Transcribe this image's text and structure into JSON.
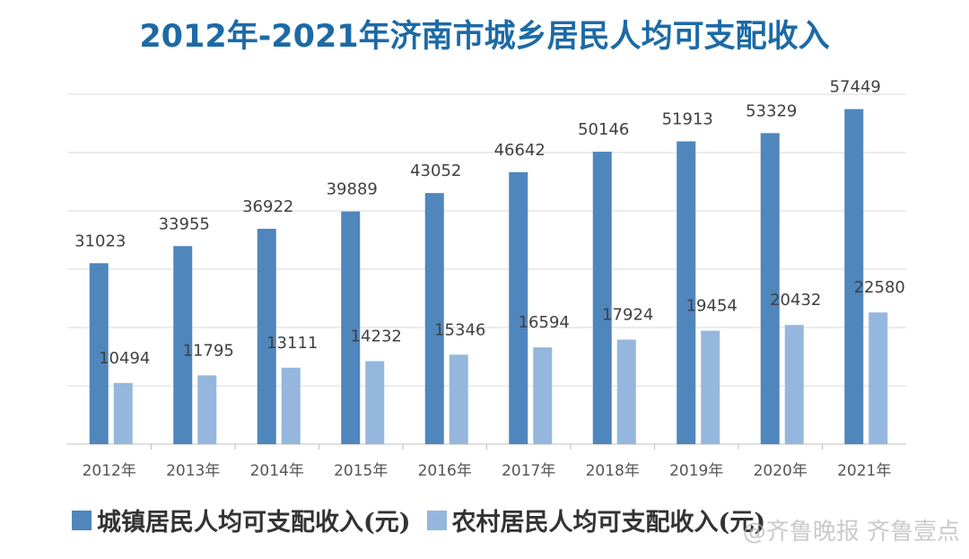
{
  "chart_data": {
    "type": "bar",
    "title": "2012年-2021年济南市城乡居民人均可支配收入",
    "categories": [
      "2012年",
      "2013年",
      "2014年",
      "2015年",
      "2016年",
      "2017年",
      "2018年",
      "2019年",
      "2020年",
      "2021年"
    ],
    "series": [
      {
        "name": "城镇居民人均可支配收入(元)",
        "color": "#4f86bc",
        "values": [
          31023,
          33955,
          36922,
          39889,
          43052,
          46642,
          50146,
          51913,
          53329,
          57449
        ]
      },
      {
        "name": "农村居民人均可支配收入(元)",
        "color": "#95b7dd",
        "values": [
          10494,
          11795,
          13111,
          14232,
          15346,
          16594,
          17924,
          19454,
          20432,
          22580
        ]
      }
    ],
    "ylim": [
      0,
      60000
    ],
    "grid": true,
    "legend": "bottom"
  },
  "watermark": "@齐鲁晚报 齐鲁壹点"
}
